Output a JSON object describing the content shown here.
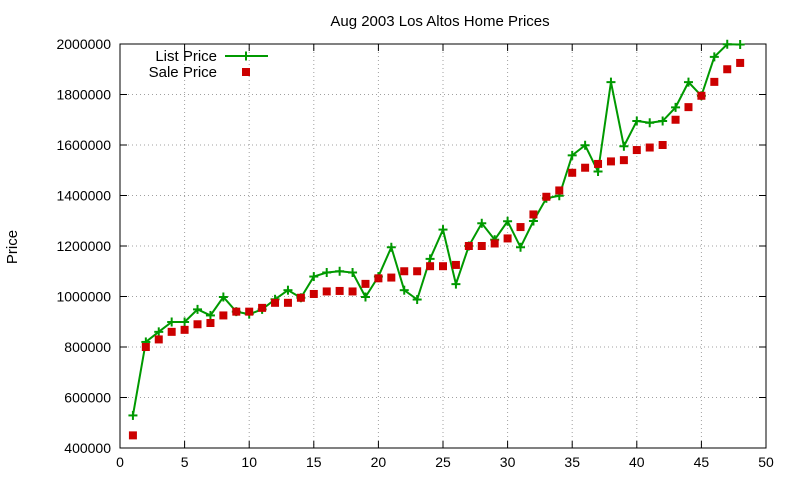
{
  "chart_data": {
    "type": "scatter",
    "title": "Aug 2003 Los Altos Home Prices",
    "xlabel": "",
    "ylabel": "Price",
    "xlim": [
      0,
      50
    ],
    "ylim": [
      400000,
      2000000
    ],
    "xticks": [
      0,
      5,
      10,
      15,
      20,
      25,
      30,
      35,
      40,
      45,
      50
    ],
    "yticks": [
      400000,
      600000,
      800000,
      1000000,
      1200000,
      1400000,
      1600000,
      1800000,
      2000000
    ],
    "grid": true,
    "legend_position": "top-left",
    "x": [
      1,
      2,
      3,
      4,
      5,
      6,
      7,
      8,
      9,
      10,
      11,
      12,
      13,
      14,
      15,
      16,
      17,
      18,
      19,
      20,
      21,
      22,
      23,
      24,
      25,
      26,
      27,
      28,
      29,
      30,
      31,
      32,
      33,
      34,
      35,
      36,
      37,
      38,
      39,
      40,
      41,
      42,
      43,
      44,
      45,
      46,
      47,
      48
    ],
    "series": [
      {
        "name": "List Price",
        "style": "linespoints",
        "color": "#009900",
        "values": [
          529000,
          820000,
          860000,
          899000,
          899000,
          949000,
          925000,
          998000,
          940000,
          930000,
          949000,
          989000,
          1025000,
          995000,
          1079000,
          1095000,
          1100000,
          1095000,
          998000,
          1079000,
          1195000,
          1025000,
          988000,
          1149000,
          1265000,
          1049000,
          1200000,
          1290000,
          1225000,
          1298000,
          1195000,
          1299000,
          1389000,
          1399000,
          1559000,
          1599000,
          1495000,
          1849000,
          1595000,
          1695000,
          1688000,
          1695000,
          1749000,
          1849000,
          1795000,
          1949000,
          1999000,
          1998000
        ]
      },
      {
        "name": "Sale Price",
        "style": "points",
        "color": "#cc0000",
        "values": [
          450000,
          800000,
          830000,
          860000,
          868000,
          890000,
          895000,
          925000,
          940000,
          940000,
          955000,
          975000,
          975000,
          995000,
          1010000,
          1020000,
          1022000,
          1020000,
          1050000,
          1072000,
          1075000,
          1100000,
          1100000,
          1120000,
          1120000,
          1125000,
          1200000,
          1200000,
          1210000,
          1230000,
          1275000,
          1325000,
          1395000,
          1420000,
          1490000,
          1510000,
          1525000,
          1535000,
          1540000,
          1580000,
          1590000,
          1600000,
          1700000,
          1750000,
          1795000,
          1850000,
          1900000,
          1925000
        ]
      }
    ]
  }
}
